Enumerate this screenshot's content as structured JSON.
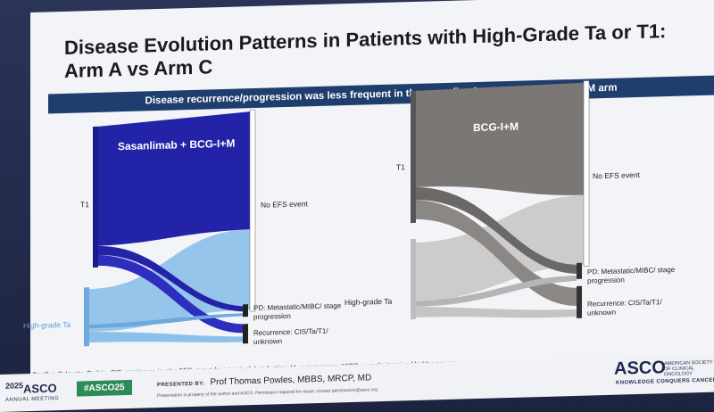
{
  "slide": {
    "title": "Disease Evolution Patterns in Patients with High-Grade Ta or T1: Arm A vs Arm C",
    "banner": "Disease recurrence/progression was less frequent in the sasanlimab + BCG I+M vs BCG-I+M arm"
  },
  "left_panel": {
    "header": "Sasanlimab + BCG-I+M",
    "source_t1": "T1",
    "source_ta": "High-grade Ta",
    "target_no_efs": "No EFS event",
    "target_pd": "PD: Metastatic/MIBC/ stage progression",
    "target_recurrence": "Recurrence: CIS/Ta/T1/ unknown",
    "colors": {
      "t1": "#2323a8",
      "ta": "#8cc0ea",
      "node": "#222222"
    }
  },
  "right_panel": {
    "header": "BCG-I+M",
    "source_t1": "T1",
    "source_ta": "High-grade Ta",
    "target_no_efs": "No EFS event",
    "target_pd": "PD: Metastatic/MIBC/ stage progression",
    "target_recurrence": "Recurrence: CIS/Ta/T1/ unknown",
    "colors": {
      "t1": "#7a7775",
      "ta": "#c9c9c9",
      "node": "#3a3a3a"
    }
  },
  "footnote": "BCG, Bacillus Calmette-Guérin; CIS, carcinoma in situ; EFS, event-free survival; I, induction; M, maintenance; MIBC, muscle invasive bladder cancer.",
  "footer": {
    "year": "2025",
    "asco": "ASCO",
    "annual_meeting": "ANNUAL MEETING",
    "hashtag": "#ASCO25",
    "presented_by": "PRESENTED BY:",
    "presenter": "Prof Thomas Powles, MBBS, MRCP, MD",
    "disclaimer": "Presentation is property of the author and ASCO. Permission required for reuse; contact permissions@asco.org",
    "asco_right": "ASCO",
    "asco_right_sub": "AMERICAN SOCIETY OF CLINICAL ONCOLOGY",
    "knowledge": "KNOWLEDGE CONQUERS CANCER"
  }
}
